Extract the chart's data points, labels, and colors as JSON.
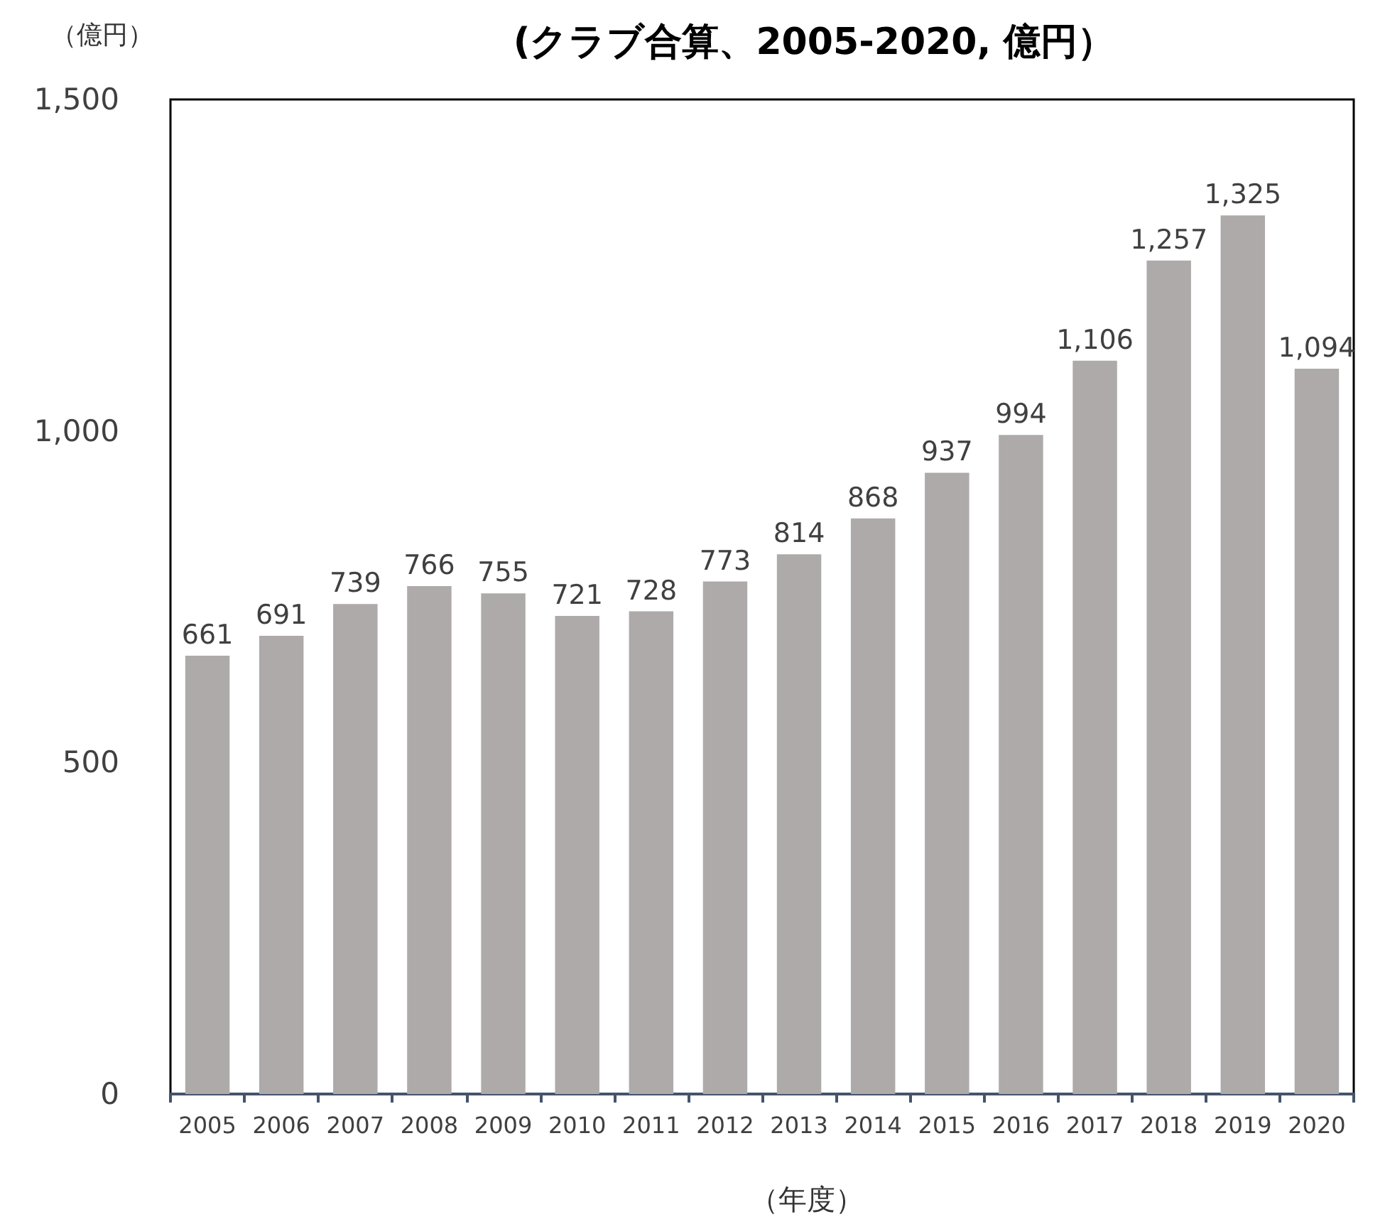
{
  "chart_data": {
    "type": "bar",
    "title": "(クラブ合算、2005-2020, 億円）",
    "ylabel": "（億円）",
    "xlabel": "（年度）",
    "categories": [
      "2005",
      "2006",
      "2007",
      "2008",
      "2009",
      "2010",
      "2011",
      "2012",
      "2013",
      "2014",
      "2015",
      "2016",
      "2017",
      "2018",
      "2019",
      "2020"
    ],
    "values": [
      661,
      691,
      739,
      766,
      755,
      721,
      728,
      773,
      814,
      868,
      937,
      994,
      1106,
      1257,
      1325,
      1094
    ],
    "value_labels": [
      "661",
      "691",
      "739",
      "766",
      "755",
      "721",
      "728",
      "773",
      "814",
      "868",
      "937",
      "994",
      "1,106",
      "1,257",
      "1,325",
      "1,094"
    ],
    "color": "#aeaaaa",
    "ylim": [
      0,
      1500
    ],
    "yticks": [
      0,
      500,
      {
        "value": 1000,
        "label": "1,000"
      },
      {
        "value": 1500,
        "label": "1,500"
      }
    ],
    "grid": false
  }
}
